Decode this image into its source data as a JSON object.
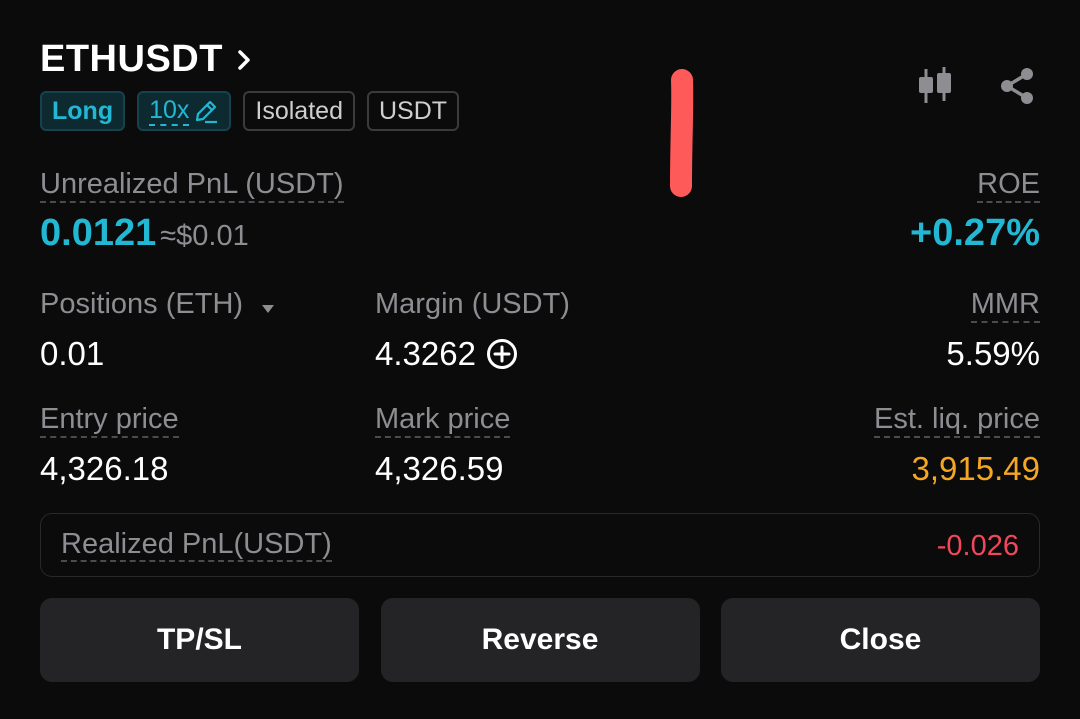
{
  "position": {
    "symbol": "ETHUSDT",
    "tags": {
      "side": "Long",
      "leverage": "10x",
      "margin_mode": "Isolated",
      "settle_coin": "USDT"
    }
  },
  "pnl": {
    "unrealized_label": "Unrealized PnL (USDT)",
    "unrealized_value": "0.0121",
    "unrealized_usd": "≈$0.01",
    "roe_label": "ROE",
    "roe_value": "+0.27%"
  },
  "stats": {
    "positions_label": "Positions (ETH)",
    "positions_value": "0.01",
    "margin_label": "Margin (USDT)",
    "margin_value": "4.3262",
    "mmr_label": "MMR",
    "mmr_value": "5.59%",
    "entry_label": "Entry price",
    "entry_value": "4,326.18",
    "mark_label": "Mark price",
    "mark_value": "4,326.59",
    "liq_label": "Est. liq. price",
    "liq_value": "3,915.49"
  },
  "realized": {
    "label": "Realized PnL(USDT)",
    "value": "-0.026"
  },
  "actions": {
    "tpsl": "TP/SL",
    "reverse": "Reverse",
    "close": "Close"
  },
  "icons": {
    "chart": "candlestick-chart-icon",
    "share": "share-icon",
    "edit": "pencil-edit-icon",
    "add": "plus-circle-icon",
    "chevron": "chevron-right-icon",
    "dropdown": "caret-down-icon"
  },
  "colors": {
    "accent": "#22b8d4",
    "negative": "#f0475a",
    "warning": "#f5a623",
    "annotation": "#ff5a5a"
  }
}
